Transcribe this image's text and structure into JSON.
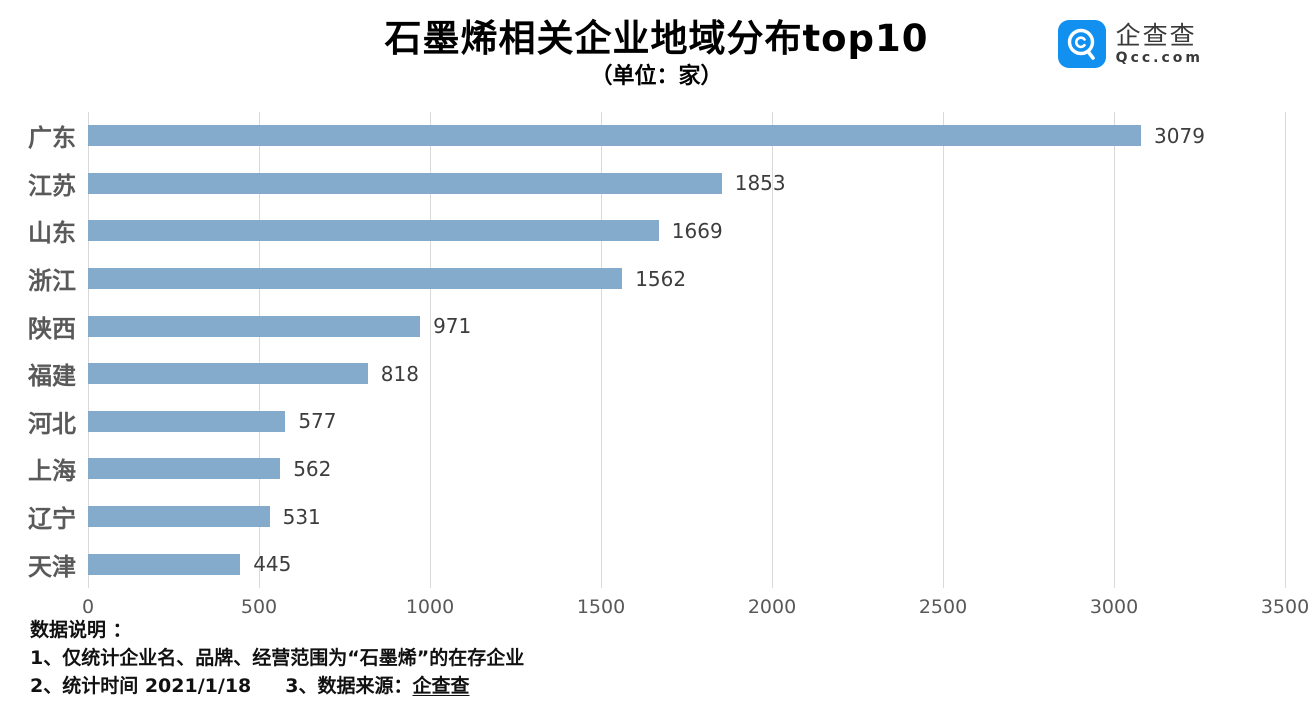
{
  "header": {
    "title": "石墨烯相关企业地域分布top10",
    "subtitle": "（单位：家）",
    "brand": {
      "name": "企查查",
      "domain": "Qcc.com",
      "logo_color": "#1190f0"
    }
  },
  "chart_data": {
    "type": "bar",
    "orientation": "horizontal",
    "title": "石墨烯相关企业地域分布top10",
    "unit_label": "（单位：家）",
    "categories": [
      "广东",
      "江苏",
      "山东",
      "浙江",
      "陕西",
      "福建",
      "河北",
      "上海",
      "辽宁",
      "天津"
    ],
    "values": [
      3079,
      1853,
      1669,
      1562,
      971,
      818,
      577,
      562,
      531,
      445
    ],
    "xlabel": "",
    "ylabel": "",
    "xlim": [
      0,
      3500
    ],
    "x_ticks": [
      0,
      500,
      1000,
      1500,
      2000,
      2500,
      3000,
      3500
    ],
    "grid": true,
    "value_labels": true,
    "bar_color": "#84aacc",
    "gridline_color": "#d9d9d9",
    "category_label_color": "#595959",
    "value_label_color": "#3d3d3d",
    "legend": false
  },
  "footer": {
    "heading": "数据说明 ：",
    "line1": "1、仅统计企业名、品牌、经营范围为“石墨烯”的在存企业",
    "line2": "2、统计时间 2021/1/18",
    "line3_prefix": "3、数据来源：",
    "line3_source": "企查查"
  }
}
